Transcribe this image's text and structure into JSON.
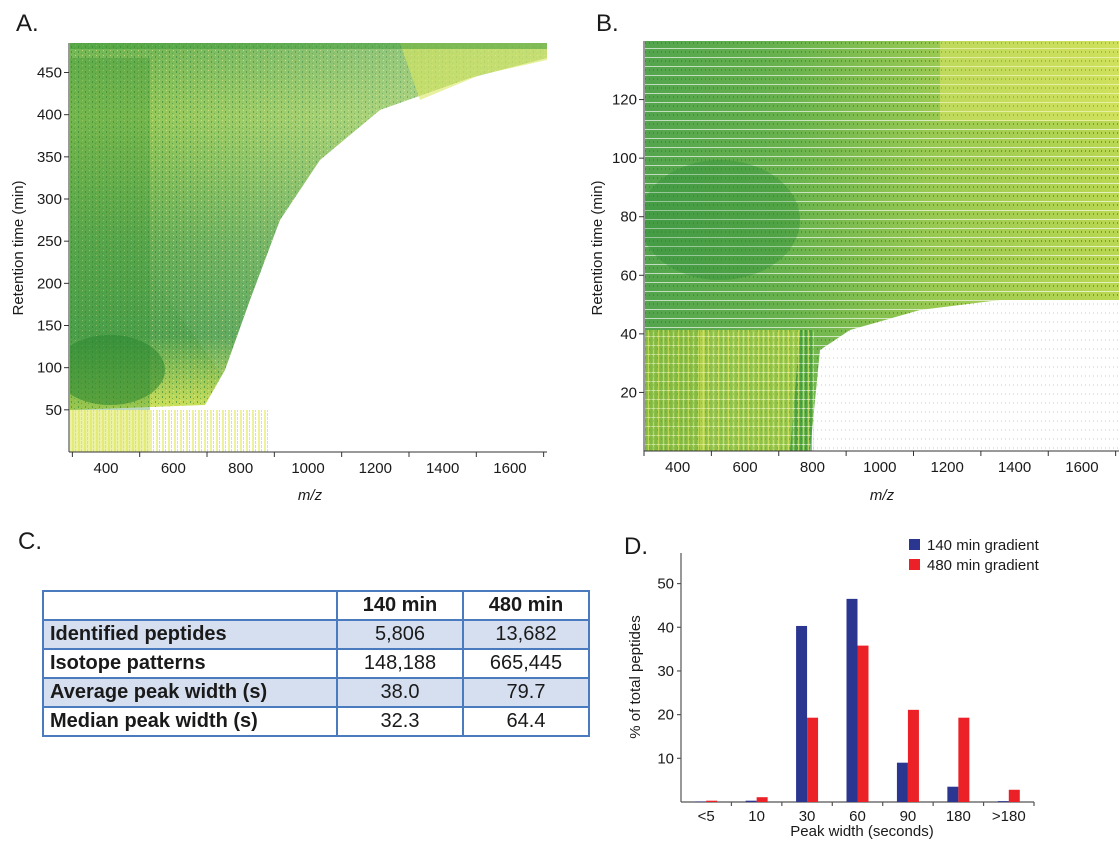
{
  "panel_labels": {
    "a": "A.",
    "b": "B.",
    "c": "C.",
    "d": "D."
  },
  "heatmap_a": {
    "ylabel": "Retention time (min)",
    "xlabel": "m/z",
    "x_ticks": [
      "400",
      "600",
      "800",
      "1000",
      "1200",
      "1400",
      "1600"
    ],
    "y_ticks": [
      "50",
      "100",
      "150",
      "200",
      "250",
      "300",
      "350",
      "400",
      "450"
    ]
  },
  "heatmap_b": {
    "ylabel": "Retention time (min)",
    "xlabel": "m/z",
    "x_ticks": [
      "400",
      "600",
      "800",
      "1000",
      "1200",
      "1400",
      "1600"
    ],
    "y_ticks": [
      "20",
      "40",
      "60",
      "80",
      "100",
      "120"
    ]
  },
  "table": {
    "headers": [
      "",
      "140 min",
      "480 min"
    ],
    "rows": [
      {
        "label": "Identified peptides",
        "v140": "5,806",
        "v480": "13,682"
      },
      {
        "label": "Isotope patterns",
        "v140": "148,188",
        "v480": "665,445"
      },
      {
        "label": "Average peak width (s)",
        "v140": "38.0",
        "v480": "79.7"
      },
      {
        "label": "Median peak width (s)",
        "v140": "32.3",
        "v480": "64.4"
      }
    ]
  },
  "colors": {
    "heat_light": "#f2f28a",
    "heat_mid": "#c4dc3c",
    "heat_dark": "#2f8f3a",
    "bar_140": "#2b3690",
    "bar_480": "#ec2027",
    "table_border": "#4a7bbf",
    "table_shade": "#d6dff0"
  },
  "chart_data": [
    {
      "panel": "A",
      "type": "heatmap",
      "xlabel": "m/z",
      "ylabel": "Retention time (min)",
      "xlim": [
        290,
        1710
      ],
      "ylim": [
        0,
        485
      ],
      "x_ticks": [
        400,
        600,
        800,
        1000,
        1200,
        1400,
        1600
      ],
      "y_ticks": [
        50,
        100,
        150,
        200,
        250,
        300,
        350,
        400,
        450
      ]
    },
    {
      "panel": "B",
      "type": "heatmap",
      "xlabel": "m/z",
      "ylabel": "Retention time (min)",
      "xlim": [
        300,
        1710
      ],
      "ylim": [
        0,
        140
      ],
      "x_ticks": [
        400,
        600,
        800,
        1000,
        1200,
        1400,
        1600
      ],
      "y_ticks": [
        20,
        40,
        60,
        80,
        100,
        120
      ]
    },
    {
      "panel": "C",
      "type": "table",
      "columns": [
        "",
        "140 min",
        "480 min"
      ],
      "rows": [
        [
          "Identified peptides",
          "5,806",
          "13,682"
        ],
        [
          "Isotope patterns",
          "148,188",
          "665,445"
        ],
        [
          "Average peak width (s)",
          "38.0",
          "79.7"
        ],
        [
          "Median peak width (s)",
          "32.3",
          "64.4"
        ]
      ]
    },
    {
      "panel": "D",
      "type": "bar",
      "categories": [
        "<5",
        "10",
        "30",
        "60",
        "90",
        "180",
        ">180"
      ],
      "series": [
        {
          "name": "140 min gradient",
          "values": [
            0.1,
            0.3,
            40.3,
            46.5,
            9.0,
            3.5,
            0.2
          ]
        },
        {
          "name": "480 min gradient",
          "values": [
            0.3,
            1.1,
            19.3,
            35.8,
            21.1,
            19.3,
            2.8
          ]
        }
      ],
      "xlabel": "Peak width (seconds)",
      "ylabel": "% of total peptides",
      "y_ticks": [
        10,
        20,
        30,
        40,
        50
      ],
      "ylim": [
        0,
        57
      ],
      "legend": "top-right",
      "grid": false
    }
  ]
}
